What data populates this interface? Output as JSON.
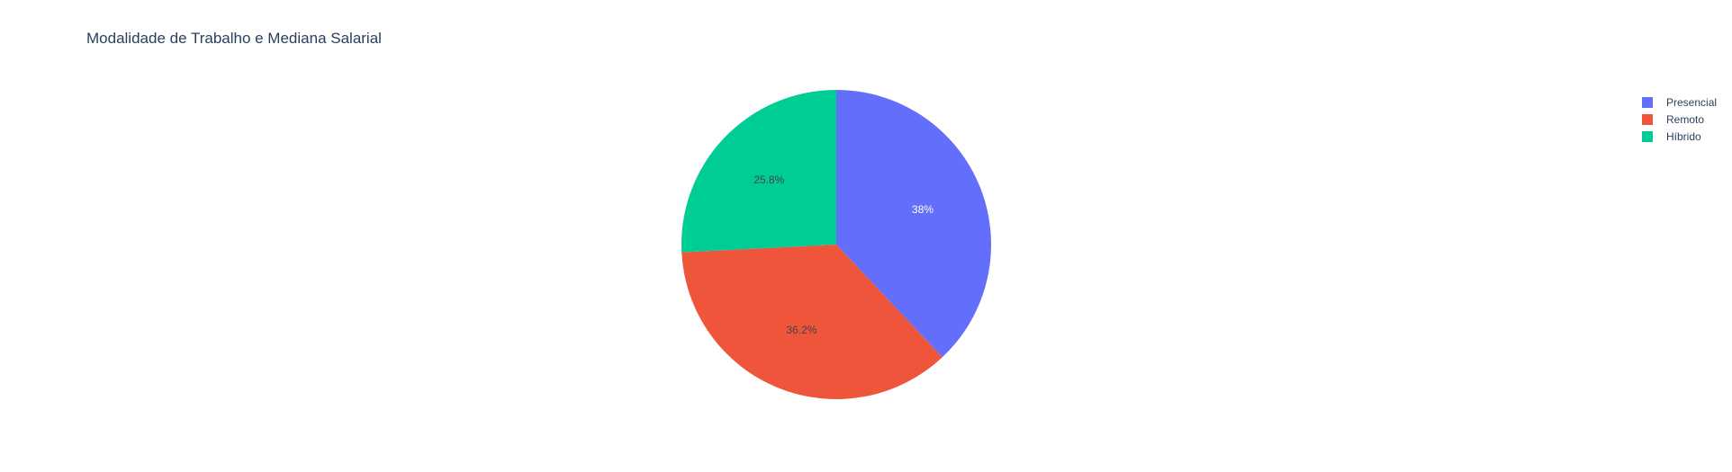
{
  "chart_data": {
    "type": "pie",
    "title": "Modalidade de Trabalho e Mediana Salarial",
    "labels": [
      "Presencial",
      "Remoto",
      "Híbrido"
    ],
    "values": [
      38,
      36.2,
      25.8
    ],
    "text_labels": [
      "38%",
      "36.2%",
      "25.8%"
    ],
    "colors": [
      "#636efa",
      "#ef553b",
      "#00cc96"
    ],
    "label_colors": [
      "#ffffff",
      "#444444",
      "#444444"
    ],
    "direction": "clockwise",
    "start": "top",
    "legend": {
      "position": "top-right",
      "entries": [
        "Presencial",
        "Remoto",
        "Híbrido"
      ]
    }
  }
}
